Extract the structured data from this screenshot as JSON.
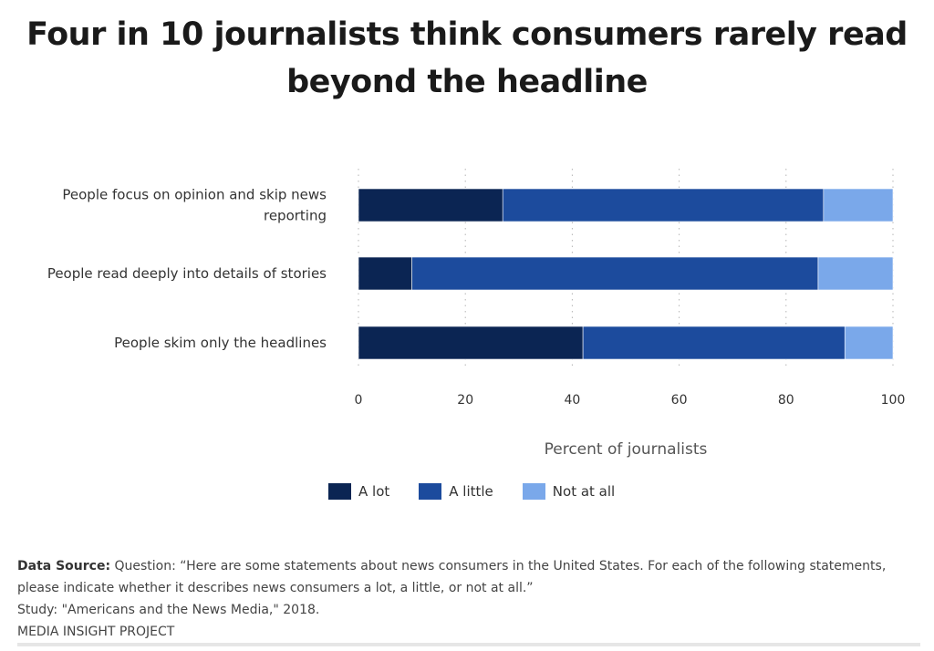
{
  "title": "Four in 10 journalists think consumers rarely read beyond the headline",
  "legend": [
    {
      "label": "A lot",
      "color": "#0b2553"
    },
    {
      "label": "A little",
      "color": "#1c4b9d"
    },
    {
      "label": "Not at all",
      "color": "#7aa8ea"
    }
  ],
  "chart_data": {
    "type": "bar",
    "orientation": "horizontal",
    "stacked": true,
    "categories": [
      "People focus on opinion and skip news reporting",
      "People read deeply into details of stories",
      "People skim only the headlines"
    ],
    "series": [
      {
        "name": "A lot",
        "values": [
          27,
          10,
          42
        ]
      },
      {
        "name": "A little",
        "values": [
          60,
          76,
          49
        ]
      },
      {
        "name": "Not at all",
        "values": [
          13,
          14,
          9
        ]
      }
    ],
    "xlabel": "Percent of journalists",
    "ylabel": "",
    "xlim": [
      0,
      100
    ],
    "xticks": [
      0,
      20,
      40,
      60,
      80,
      100
    ],
    "grid": true,
    "legend_position": "bottom"
  },
  "source": {
    "label": "Data Source:",
    "question": "Question: “Here are some statements about news consumers in the United States. For each of the following statements, please indicate whether it describes news consumers a lot, a little, or not at all.”",
    "study": "Study: \"Americans and the News Media,\" 2018.",
    "org": "MEDIA INSIGHT PROJECT"
  }
}
